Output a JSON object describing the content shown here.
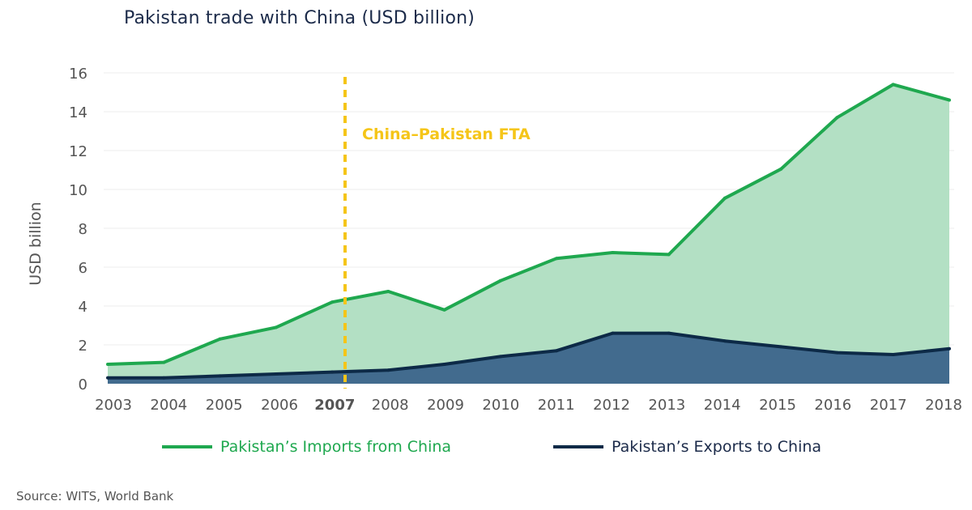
{
  "chart_data": {
    "type": "area",
    "title": "Pakistan trade with China (USD billion)",
    "ylabel": "USD billion",
    "xlabel": "",
    "categories": [
      "2003",
      "2004",
      "2005",
      "2006",
      "2007",
      "2008",
      "2009",
      "2010",
      "2011",
      "2012",
      "2013",
      "2014",
      "2015",
      "2016",
      "2017",
      "2018"
    ],
    "highlighted_category": "2007",
    "ylim": [
      0,
      16
    ],
    "yticks": [
      0,
      2,
      4,
      6,
      8,
      10,
      12,
      14,
      16
    ],
    "grid": true,
    "series": [
      {
        "name": "Pakistan’s Imports from China",
        "color": "#1fa84f",
        "fill": "#b3e0c4",
        "values": [
          1.0,
          1.1,
          2.3,
          2.9,
          4.2,
          4.75,
          3.8,
          5.3,
          6.45,
          6.75,
          6.65,
          9.55,
          11.05,
          13.7,
          15.4,
          14.6
        ]
      },
      {
        "name": "Pakistan’s Exports to China",
        "color": "#0d2a47",
        "fill": "#426b8e",
        "values": [
          0.3,
          0.3,
          0.4,
          0.5,
          0.6,
          0.7,
          1.0,
          1.4,
          1.7,
          2.6,
          2.6,
          2.2,
          1.9,
          1.6,
          1.5,
          1.8
        ]
      }
    ],
    "annotation": {
      "label": "China–Pakistan FTA",
      "at": "2007",
      "color": "#f5c518"
    },
    "legend_position": "bottom"
  },
  "source": "Source: WITS, World Bank"
}
